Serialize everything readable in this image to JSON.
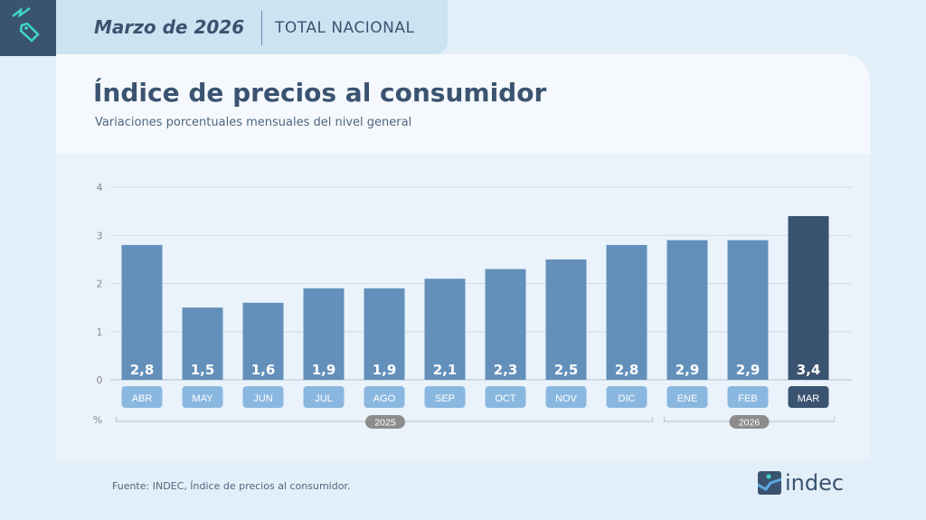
{
  "header": {
    "date": "Marzo de 2026",
    "scope": "TOTAL NACIONAL"
  },
  "title": "Índice de precios al consumidor",
  "subtitle": "Variaciones porcentuales mensuales del nivel general",
  "source": "Fuente: INDEC, Índice de precios al consumidor.",
  "logo": "indec",
  "colors": {
    "bar": "#6390bb",
    "highlight": "#3a5370",
    "label_bg": "#8ab7e0",
    "year_pill": "#8c8c8c"
  },
  "chart_data": {
    "type": "bar",
    "title": "Índice de precios al consumidor",
    "ylabel": "%",
    "ylim": [
      0,
      4
    ],
    "yticks": [
      "0",
      "1",
      "2",
      "3",
      "4"
    ],
    "grid": true,
    "categories": [
      "ABR",
      "MAY",
      "JUN",
      "JUL",
      "AGO",
      "SEP",
      "OCT",
      "NOV",
      "DIC",
      "ENE",
      "FEB",
      "MAR"
    ],
    "values": [
      2.8,
      1.5,
      1.6,
      1.9,
      1.9,
      2.1,
      2.3,
      2.5,
      2.8,
      2.9,
      2.9,
      3.4
    ],
    "value_labels": [
      "2,8",
      "1,5",
      "1,6",
      "1,9",
      "1,9",
      "2,1",
      "2,3",
      "2,5",
      "2,8",
      "2,9",
      "2,9",
      "3,4"
    ],
    "highlight_index": 11,
    "year_groups": [
      {
        "label": "2025",
        "start": 0,
        "end": 8
      },
      {
        "label": "2026",
        "start": 9,
        "end": 11
      }
    ]
  }
}
